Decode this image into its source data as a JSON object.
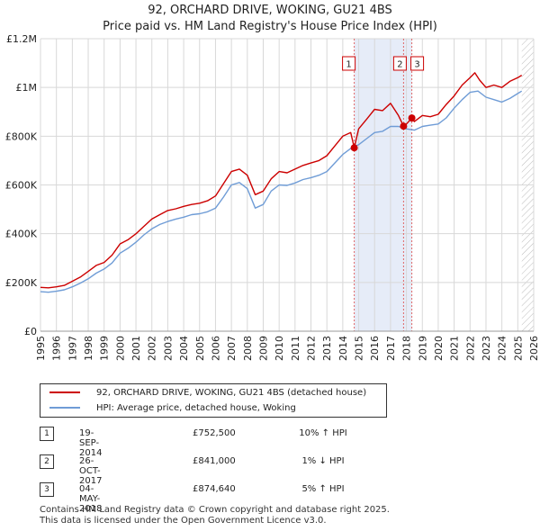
{
  "title_line1": "92, ORCHARD DRIVE, WOKING, GU21 4BS",
  "title_line2": "Price paid vs. HM Land Registry's House Price Index (HPI)",
  "colors": {
    "property": "#cc0000",
    "hpi": "#6f9cd6",
    "shade": "#dde6f6",
    "grid": "#d8d8d8",
    "marker": "#cc0000"
  },
  "chart_data": {
    "type": "line",
    "title": "Price paid vs. HM Land Registry's House Price Index (HPI)",
    "xlabel": "",
    "ylabel": "",
    "xlim": [
      1995,
      2026
    ],
    "ylim": [
      0,
      1200000
    ],
    "ytick_values": [
      0,
      200000,
      400000,
      600000,
      800000,
      1000000,
      1200000
    ],
    "ytick_labels": [
      "£0",
      "£200K",
      "£400K",
      "£600K",
      "£800K",
      "£1M",
      "£1.2M"
    ],
    "xtick_values": [
      1995,
      1996,
      1997,
      1998,
      1999,
      2000,
      2001,
      2002,
      2003,
      2004,
      2005,
      2006,
      2007,
      2008,
      2009,
      2010,
      2011,
      2012,
      2013,
      2014,
      2015,
      2016,
      2017,
      2018,
      2019,
      2020,
      2021,
      2022,
      2023,
      2024,
      2025,
      2026
    ],
    "xtick_labels": [
      "1995",
      "1996",
      "1997",
      "1998",
      "1999",
      "2000",
      "2001",
      "2002",
      "2003",
      "2004",
      "2005",
      "2006",
      "2007",
      "2008",
      "2009",
      "2010",
      "2011",
      "2012",
      "2013",
      "2014",
      "2015",
      "2016",
      "2017",
      "2018",
      "2019",
      "2020",
      "2021",
      "2022",
      "2023",
      "2024",
      "2025",
      "2026"
    ],
    "legend_placement": "below-left",
    "shaded_regions": [
      {
        "from": 2014.72,
        "to": 2018.34
      },
      {
        "from": 2025.25,
        "to": 2026.0,
        "hatched": true
      }
    ],
    "series": [
      {
        "name": "92, ORCHARD DRIVE, WOKING, GU21 4BS (detached house)",
        "x": [
          1995,
          1995.5,
          1996,
          1996.5,
          1997,
          1997.5,
          1998,
          1998.5,
          1999,
          1999.5,
          2000,
          2000.5,
          2001,
          2001.5,
          2002,
          2002.5,
          2003,
          2003.5,
          2004,
          2004.5,
          2005,
          2005.5,
          2006,
          2006.5,
          2007,
          2007.5,
          2008,
          2008.5,
          2009,
          2009.5,
          2010,
          2010.5,
          2011,
          2011.5,
          2012,
          2012.5,
          2013,
          2013.5,
          2014,
          2014.5,
          2014.72,
          2015,
          2015.5,
          2016,
          2016.5,
          2017,
          2017.5,
          2017.82,
          2018,
          2018.34,
          2018.5,
          2019,
          2019.5,
          2020,
          2020.5,
          2021,
          2021.5,
          2022,
          2022.3,
          2022.6,
          2023,
          2023.5,
          2024,
          2024.5,
          2025,
          2025.25
        ],
        "values": [
          180000,
          178000,
          182000,
          188000,
          205000,
          222000,
          245000,
          270000,
          282000,
          312000,
          358000,
          375000,
          400000,
          430000,
          460000,
          478000,
          495000,
          502000,
          512000,
          520000,
          525000,
          535000,
          555000,
          605000,
          655000,
          665000,
          640000,
          560000,
          575000,
          625000,
          655000,
          650000,
          665000,
          680000,
          690000,
          700000,
          720000,
          760000,
          800000,
          815000,
          752500,
          830000,
          870000,
          910000,
          905000,
          935000,
          885000,
          841000,
          850000,
          874640,
          860000,
          885000,
          880000,
          890000,
          930000,
          965000,
          1010000,
          1040000,
          1060000,
          1030000,
          1000000,
          1010000,
          1000000,
          1025000,
          1040000,
          1050000
        ]
      },
      {
        "name": "HPI: Average price, detached house, Woking",
        "x": [
          1995,
          1995.5,
          1996,
          1996.5,
          1997,
          1997.5,
          1998,
          1998.5,
          1999,
          1999.5,
          2000,
          2000.5,
          2001,
          2001.5,
          2002,
          2002.5,
          2003,
          2003.5,
          2004,
          2004.5,
          2005,
          2005.5,
          2006,
          2006.5,
          2007,
          2007.5,
          2008,
          2008.5,
          2009,
          2009.5,
          2010,
          2010.5,
          2011,
          2011.5,
          2012,
          2012.5,
          2013,
          2013.5,
          2014,
          2014.5,
          2015,
          2015.5,
          2016,
          2016.5,
          2017,
          2017.5,
          2018,
          2018.5,
          2019,
          2019.5,
          2020,
          2020.5,
          2021,
          2021.5,
          2022,
          2022.5,
          2023,
          2023.5,
          2024,
          2024.5,
          2025,
          2025.25
        ],
        "values": [
          162000,
          160000,
          164000,
          170000,
          182000,
          197000,
          215000,
          238000,
          255000,
          280000,
          320000,
          340000,
          365000,
          395000,
          420000,
          438000,
          450000,
          460000,
          468000,
          478000,
          482000,
          490000,
          505000,
          550000,
          600000,
          610000,
          585000,
          505000,
          520000,
          575000,
          600000,
          598000,
          608000,
          622000,
          630000,
          640000,
          655000,
          690000,
          725000,
          750000,
          765000,
          790000,
          815000,
          820000,
          840000,
          840000,
          830000,
          825000,
          840000,
          845000,
          850000,
          875000,
          915000,
          950000,
          980000,
          985000,
          960000,
          950000,
          940000,
          955000,
          975000,
          985000
        ]
      }
    ],
    "transactions": [
      {
        "num": "1",
        "x": 2014.72,
        "value": 752500
      },
      {
        "num": "2",
        "x": 2017.82,
        "value": 841000
      },
      {
        "num": "3",
        "x": 2018.34,
        "value": 874640
      }
    ]
  },
  "legend": {
    "property_label": "92, ORCHARD DRIVE, WOKING, GU21 4BS (detached house)",
    "hpi_label": "HPI: Average price, detached house, Woking"
  },
  "transactions_table": [
    {
      "num": "1",
      "date": "19-SEP-2014",
      "price": "£752,500",
      "hpi": "10% ↑ HPI"
    },
    {
      "num": "2",
      "date": "26-OCT-2017",
      "price": "£841,000",
      "hpi": "1% ↓ HPI"
    },
    {
      "num": "3",
      "date": "04-MAY-2018",
      "price": "£874,640",
      "hpi": "5% ↑ HPI"
    }
  ],
  "footer_line1": "Contains HM Land Registry data © Crown copyright and database right 2025.",
  "footer_line2": "This data is licensed under the Open Government Licence v3.0."
}
